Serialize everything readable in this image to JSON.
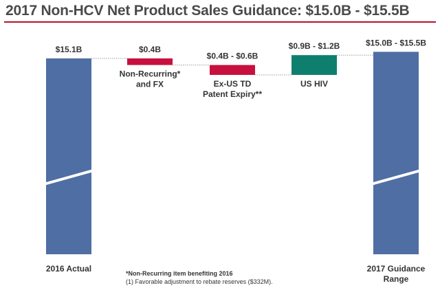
{
  "title": "2017 Non-HCV Net Product Sales Guidance: $15.0B - $15.5B",
  "chart_data": {
    "type": "waterfall",
    "unit": "$B",
    "axis_break": true,
    "bars": [
      {
        "label": [
          "2016 Actual"
        ],
        "value_label": "$15.1B",
        "kind": "total",
        "value": 15.1,
        "color": "#4f6ea3"
      },
      {
        "label": [
          "Non-Recurring*",
          "and FX"
        ],
        "value_label": "$0.4B",
        "kind": "decrease",
        "low": 0.4,
        "high": 0.4,
        "color": "#c8103e"
      },
      {
        "label": [
          "Ex-US TD",
          "Patent Expiry**"
        ],
        "value_label": "$0.4B - $0.6B",
        "kind": "decrease",
        "low": 0.4,
        "high": 0.6,
        "color": "#c8103e"
      },
      {
        "label": [
          "US HIV"
        ],
        "value_label": "$0.9B - $1.2B",
        "kind": "increase",
        "low": 0.9,
        "high": 1.2,
        "color": "#0e7f6e"
      },
      {
        "label": [
          "2017 Guidance",
          "Range"
        ],
        "value_label": "$15.0B - $15.5B",
        "kind": "total",
        "low": 15.0,
        "high": 15.5,
        "color": "#4f6ea3"
      }
    ]
  },
  "footnotes": [
    "*Non-Recurring item benefiting 2016",
    "(1)  Favorable adjustment to rebate reserves ($332M)."
  ]
}
